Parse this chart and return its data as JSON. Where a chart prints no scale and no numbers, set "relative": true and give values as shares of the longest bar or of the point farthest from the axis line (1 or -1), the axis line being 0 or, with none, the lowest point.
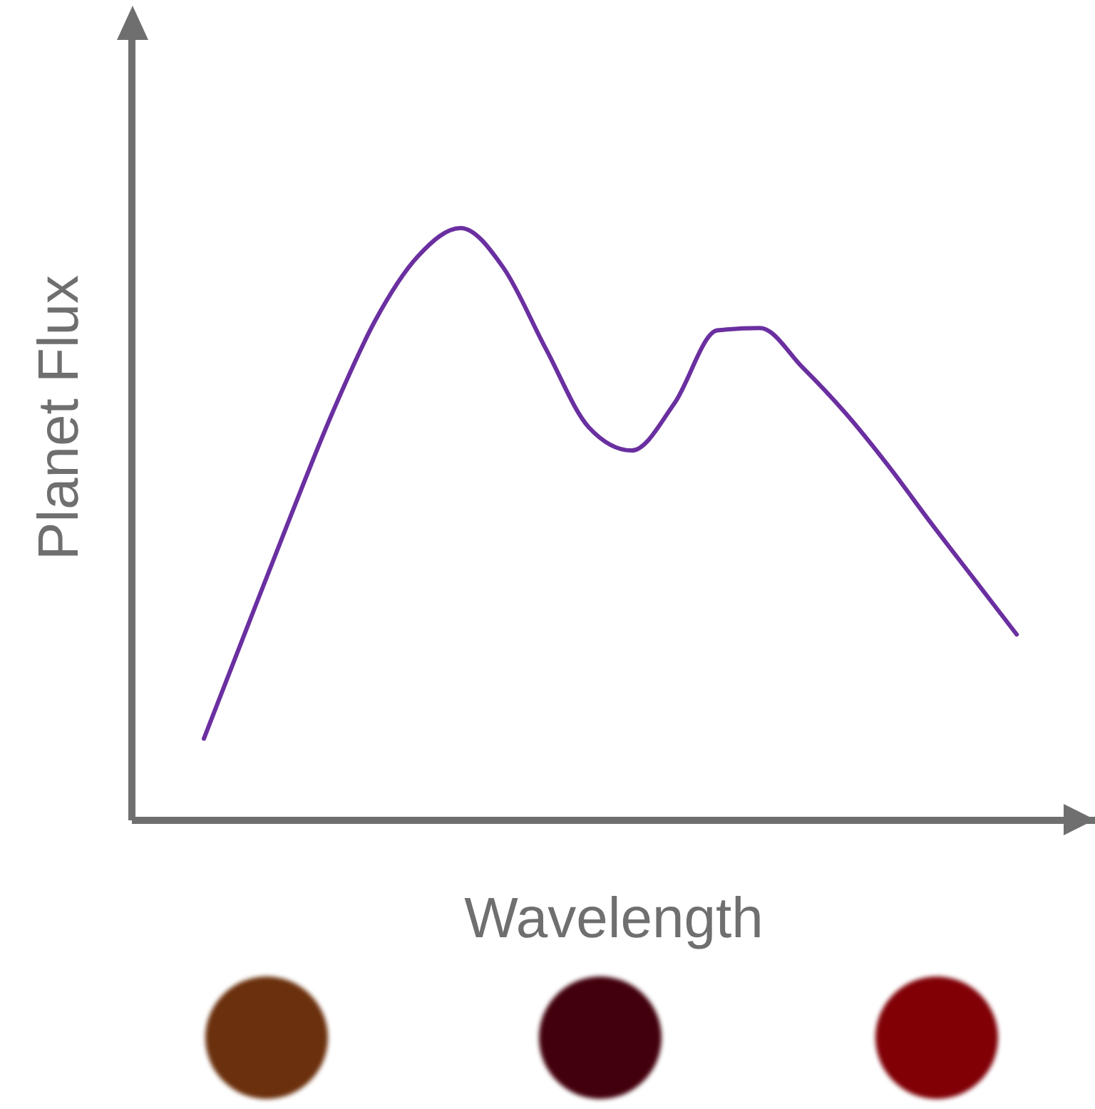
{
  "chart_data": {
    "type": "line",
    "relative": true,
    "xlabel": "Wavelength",
    "ylabel": "Planet Flux",
    "categories": [
      null,
      null,
      null,
      null,
      null,
      null,
      null,
      null,
      null,
      null,
      null,
      null,
      null,
      null,
      null,
      null,
      null,
      null,
      null,
      null
    ],
    "series": [
      {
        "color": "#6a2fa0",
        "values": [
          0.137,
          0.323,
          0.508,
          0.687,
          0.843,
          0.952,
          1.0,
          0.933,
          0.795,
          0.663,
          0.624,
          0.704,
          0.827,
          0.831,
          0.764,
          0.687,
          0.598,
          0.501,
          0.407,
          0.313
        ]
      }
    ],
    "grid": false,
    "marker": "none"
  }
}
